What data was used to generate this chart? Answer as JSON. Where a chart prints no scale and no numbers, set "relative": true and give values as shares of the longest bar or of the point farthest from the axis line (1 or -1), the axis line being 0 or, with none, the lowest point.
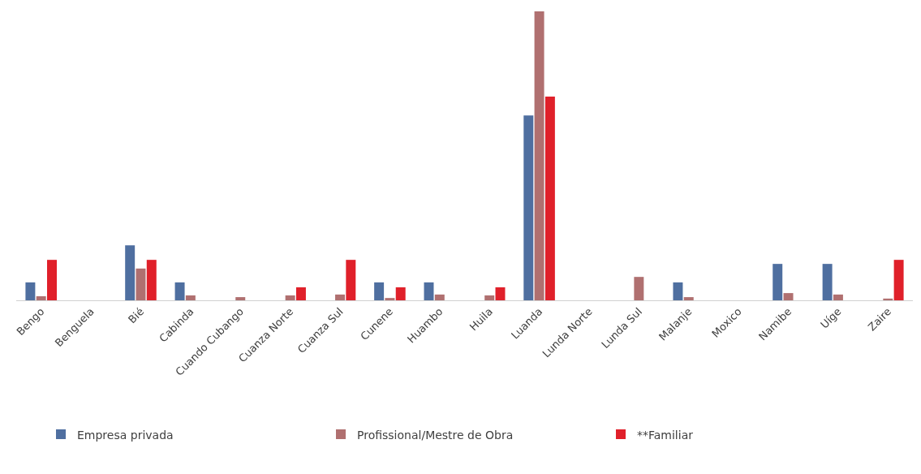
{
  "chart_data": {
    "type": "bar",
    "relative": true,
    "legend": "bottom",
    "categories": [
      "Bengo",
      "Benguela",
      "Bié",
      "Cabinda",
      "Cuando Cubango",
      "Cuanza Norte",
      "Cuanza Sul",
      "Cunene",
      "Huambo",
      "Huila",
      "Luanda",
      "Lunda Norte",
      "Lunda Sul",
      "Malanje",
      "Moxico",
      "Namibe",
      "Uíge",
      "Zaire"
    ],
    "series": [
      {
        "name": "Empresa privada",
        "color": "#4f6fa0",
        "values": [
          0.062,
          0,
          0.19,
          0.062,
          0,
          0,
          0,
          0.062,
          0.062,
          0,
          0.64,
          0,
          0,
          0.062,
          0,
          0.126,
          0.126,
          0
        ]
      },
      {
        "name": "Profissional/Mestre de Obra",
        "color": "#b07070",
        "values": [
          0.014,
          0,
          0.11,
          0.017,
          0.011,
          0.017,
          0.02,
          0.008,
          0.02,
          0.017,
          1,
          0,
          0.081,
          0.011,
          0,
          0.025,
          0.02,
          0.006
        ]
      },
      {
        "name": "**Familiar",
        "color": "#e0202a",
        "values": [
          0.14,
          0,
          0.14,
          0,
          0,
          0.045,
          0.14,
          0.045,
          0,
          0.045,
          0.705,
          0,
          0,
          0,
          0,
          0,
          0,
          0.14
        ]
      }
    ]
  }
}
